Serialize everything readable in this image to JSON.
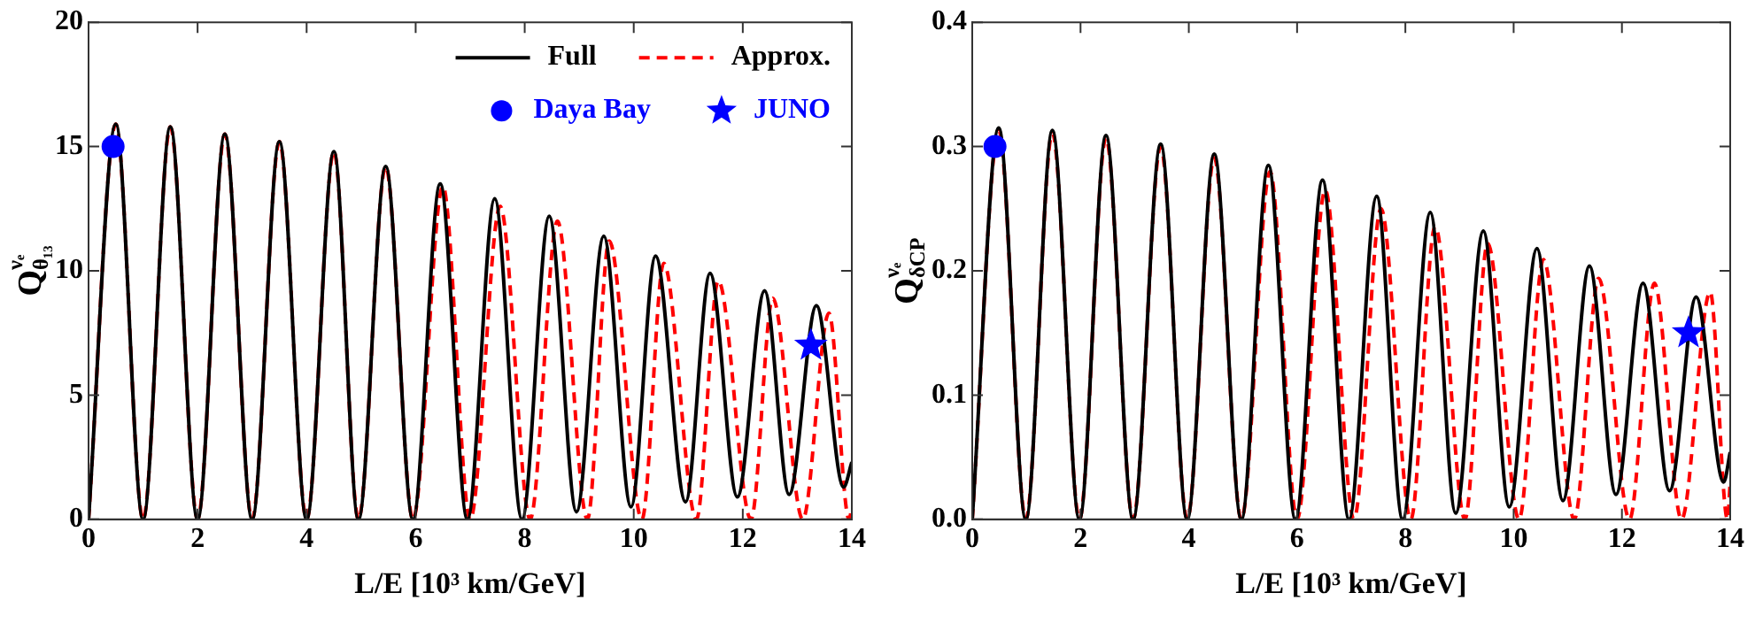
{
  "chart_data": [
    {
      "type": "line",
      "xlabel": "L/E [10³ km/GeV]",
      "ylabel": "Q$^{νₑ}$$_{θ₁₃}$",
      "xlim": [
        0,
        14
      ],
      "xticks": [
        0,
        2,
        4,
        6,
        8,
        10,
        12,
        14
      ],
      "ylim": [
        0,
        20
      ],
      "yticks": [
        0,
        5,
        10,
        15,
        20
      ],
      "grid": false,
      "legend": "top right",
      "series": [
        {
          "name": "Full",
          "type": "line",
          "color": "#000000",
          "line_style": "solid",
          "marker": "none",
          "x": [
            0,
            0.5,
            1.0,
            1.5,
            2.0,
            2.5,
            3.0,
            3.5,
            4.0,
            4.5,
            4.95,
            5.45,
            5.95,
            6.45,
            6.95,
            7.45,
            7.95,
            8.45,
            8.95,
            9.45,
            9.95,
            10.4,
            10.95,
            11.4,
            11.9,
            12.4,
            12.85,
            13.35,
            13.85,
            14
          ],
          "values": [
            0,
            15.9,
            0,
            15.8,
            0,
            15.5,
            0,
            15.2,
            0,
            14.8,
            0,
            14.2,
            0,
            13.5,
            0,
            12.9,
            0,
            12.2,
            0.3,
            11.4,
            0.5,
            10.6,
            0.7,
            9.9,
            0.9,
            9.2,
            1.0,
            8.6,
            1.3,
            2.3
          ]
        },
        {
          "name": "Approx.",
          "type": "line",
          "color": "#ff0000",
          "line_style": "dashed",
          "marker": "none",
          "x": [
            0,
            0.5,
            1.0,
            1.5,
            2.0,
            2.5,
            3.0,
            3.5,
            4.0,
            4.5,
            4.95,
            5.45,
            5.95,
            6.5,
            7.0,
            7.55,
            8.1,
            8.6,
            9.15,
            9.55,
            10.15,
            10.55,
            11.15,
            11.55,
            12.15,
            12.55,
            13.1,
            13.58,
            13.95,
            14
          ],
          "values": [
            0,
            15.9,
            0,
            15.8,
            0,
            15.5,
            0,
            15.2,
            0,
            14.8,
            0,
            14.2,
            0,
            13.4,
            0,
            12.6,
            0,
            12.0,
            0,
            11.2,
            0,
            10.3,
            0,
            9.6,
            0,
            8.9,
            0,
            8.3,
            0,
            0.5
          ]
        },
        {
          "name": "Daya Bay",
          "type": "scatter",
          "color": "#0000ff",
          "marker": "circle",
          "x": [
            0.45
          ],
          "values": [
            15
          ]
        },
        {
          "name": "JUNO",
          "type": "scatter",
          "color": "#0000ff",
          "marker": "star",
          "x": [
            13.25
          ],
          "values": [
            7
          ]
        }
      ]
    },
    {
      "type": "line",
      "xlabel": "L/E [10³ km/GeV]",
      "ylabel": "Q$^{νₑ}$$_{δCP}$",
      "xlim": [
        0,
        14
      ],
      "xticks": [
        0,
        2,
        4,
        6,
        8,
        10,
        12,
        14
      ],
      "ylim": [
        0,
        0.4
      ],
      "yticks": [
        {
          "value": 0,
          "label": "0.0"
        },
        0.1,
        0.2,
        0.3,
        0.4
      ],
      "grid": false,
      "series": [
        {
          "type": "line",
          "color": "#000000",
          "line_style": "solid",
          "marker": "none",
          "x": [
            0,
            0.49,
            0.99,
            1.48,
            1.98,
            2.47,
            2.97,
            3.48,
            3.97,
            4.47,
            4.97,
            5.47,
            5.97,
            6.47,
            6.96,
            7.47,
            7.95,
            8.46,
            8.93,
            9.44,
            9.92,
            10.43,
            10.91,
            11.4,
            11.89,
            12.39,
            12.88,
            13.37,
            13.88,
            14
          ],
          "values": [
            0,
            0.315,
            0,
            0.313,
            0,
            0.309,
            0,
            0.302,
            0,
            0.294,
            0,
            0.285,
            0,
            0.273,
            0,
            0.26,
            0,
            0.247,
            0.005,
            0.232,
            0.01,
            0.218,
            0.015,
            0.204,
            0.02,
            0.19,
            0.023,
            0.179,
            0.03,
            0.054
          ]
        },
        {
          "type": "line",
          "color": "#ff0000",
          "line_style": "dashed",
          "marker": "none",
          "x": [
            0,
            0.49,
            0.99,
            1.48,
            1.98,
            2.47,
            2.97,
            3.48,
            3.97,
            4.47,
            4.97,
            5.5,
            6.0,
            6.52,
            7.05,
            7.55,
            8.1,
            8.55,
            9.1,
            9.52,
            10.1,
            10.55,
            11.12,
            11.57,
            12.14,
            12.6,
            13.1,
            13.63,
            13.95,
            14
          ],
          "values": [
            0,
            0.313,
            0,
            0.311,
            0,
            0.307,
            0,
            0.3,
            0,
            0.291,
            0,
            0.28,
            0,
            0.265,
            0,
            0.25,
            0,
            0.236,
            0,
            0.222,
            0,
            0.209,
            0,
            0.194,
            0,
            0.19,
            0,
            0.183,
            0,
            0.03
          ]
        },
        {
          "type": "scatter",
          "color": "#0000ff",
          "marker": "circle",
          "x": [
            0.42
          ],
          "values": [
            0.3
          ]
        },
        {
          "type": "scatter",
          "color": "#0000ff",
          "marker": "star",
          "x": [
            13.23
          ],
          "values": [
            0.15
          ]
        }
      ]
    }
  ]
}
